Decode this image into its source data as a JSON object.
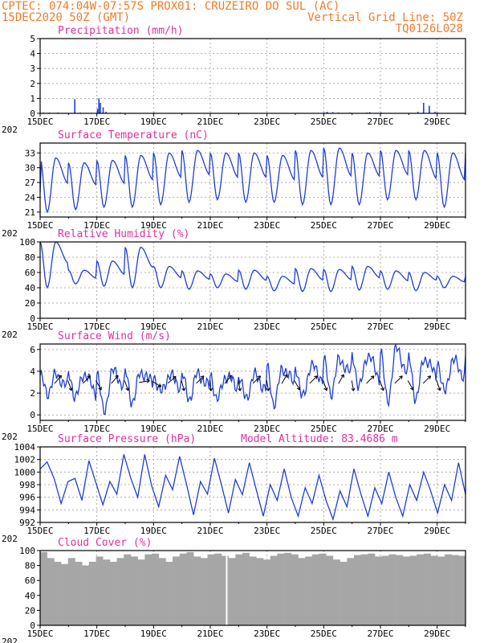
{
  "header": {
    "line1": "CPTEC:  074:04W-07:57S  PROX01: CRUZEIRO DO SUL (AC)",
    "date": "15DEC2020 50Z (GMT)",
    "grid_note": "Vertical Grid Line: 50Z",
    "code": "TQ0126L028"
  },
  "x_labels": [
    "15DEC",
    "17DEC",
    "19DEC",
    "21DEC",
    "23DEC",
    "25DEC",
    "27DEC",
    "29DEC"
  ],
  "year_fragment": "202",
  "colors": {
    "header": "#f07b28",
    "title": "#e0309a",
    "series": "#1f3ed8",
    "cloud": "#a6a6a6"
  },
  "chart_data": [
    {
      "id": "precip",
      "type": "bar",
      "title": "Precipitation (mm/h)",
      "ylim": [
        0,
        5
      ],
      "yticks": [
        0,
        1,
        2,
        3,
        4,
        5
      ],
      "days": [
        0.1,
        0.3,
        0.6,
        0.9,
        1.2,
        1.4,
        1.6,
        1.8,
        2.0,
        2.05,
        2.1,
        2.2,
        2.3,
        2.8,
        4.0,
        5.0,
        5.2,
        8.0,
        10.0,
        10.1,
        10.3,
        10.5,
        10.9,
        11.5,
        11.6,
        12.0,
        13.3,
        13.5,
        13.7,
        13.9,
        14.0
      ],
      "values": [
        0.05,
        0.05,
        0.05,
        0.03,
        0.95,
        0.05,
        0.03,
        0.03,
        0.3,
        1.0,
        0.7,
        0.4,
        0.1,
        0.05,
        0.05,
        0.03,
        0.03,
        0.03,
        0.05,
        0.1,
        0.08,
        0.05,
        0.05,
        0.05,
        0.08,
        0.05,
        0.1,
        0.7,
        0.5,
        0.1,
        0.05
      ]
    },
    {
      "id": "temp",
      "type": "line",
      "title": "Surface Temperature (nC)",
      "ylim": [
        20,
        35
      ],
      "yticks": [
        21,
        24,
        27,
        30,
        33
      ],
      "daily_min": [
        21.0,
        21.5,
        22.0,
        22.0,
        22.5,
        23.0,
        23.5,
        23.0,
        23.0,
        22.5,
        22.5,
        22.5,
        23.5,
        23.5,
        22.0
      ],
      "daily_max": [
        32.0,
        31.0,
        31.5,
        32.5,
        33.0,
        33.5,
        33.0,
        33.0,
        32.5,
        33.5,
        34.0,
        33.0,
        33.5,
        33.5,
        33.0
      ],
      "start_value": 25.0
    },
    {
      "id": "rh",
      "type": "line",
      "title": "Relative Humidity (%)",
      "ylim": [
        0,
        100
      ],
      "yticks": [
        0,
        20,
        40,
        60,
        80,
        100
      ],
      "daily_max": [
        100,
        63,
        75,
        93,
        68,
        62,
        58,
        63,
        55,
        65,
        64,
        68,
        62,
        60,
        55
      ],
      "daily_min": [
        40,
        45,
        42,
        40,
        40,
        38,
        40,
        38,
        36,
        35,
        35,
        37,
        38,
        36,
        40
      ],
      "start_value": 100
    },
    {
      "id": "wind",
      "type": "line",
      "title": "Surface Wind (m/s)",
      "ylim": [
        -0.5,
        6.5
      ],
      "yticks": [
        0,
        2,
        4,
        6
      ],
      "daily_max": [
        3.6,
        3.8,
        4.0,
        3.9,
        3.6,
        3.7,
        3.6,
        3.6,
        4.3,
        4.5,
        5.0,
        5.5,
        6.0,
        5.2,
        5.0
      ],
      "daily_min": [
        2.0,
        1.6,
        0.2,
        1.2,
        2.0,
        1.5,
        1.4,
        1.5,
        1.0,
        1.5,
        2.0,
        2.5,
        1.2,
        1.5,
        2.0
      ],
      "arrow_days": [
        0.55,
        1.0,
        1.55,
        2.0,
        2.55,
        3.0,
        3.55,
        4.0,
        4.55,
        5.0,
        5.55,
        6.0,
        6.55,
        7.0,
        7.55,
        8.0,
        8.55,
        9.0,
        9.55,
        10.0,
        10.55,
        11.0,
        11.55,
        12.0,
        12.55,
        13.0,
        13.55,
        14.0
      ],
      "arrow_dirs": [
        40,
        160,
        45,
        150,
        40,
        160,
        80,
        120,
        50,
        165,
        45,
        175,
        40,
        170,
        45,
        170,
        30,
        150,
        45,
        160,
        30,
        170,
        45,
        160,
        45,
        150,
        45,
        160
      ]
    },
    {
      "id": "pressure",
      "type": "line",
      "title": "Surface Pressure (hPa)",
      "extra_label": "Model Altitude: 83.4686 m",
      "ylim": [
        992,
        1004
      ],
      "yticks": [
        992,
        994,
        996,
        998,
        1000,
        1002,
        1004
      ],
      "values": [
        1000.5,
        1001.6,
        999.0,
        995.0,
        998.5,
        999.0,
        995.5,
        1001.8,
        998.3,
        994.8,
        998.5,
        996.5,
        1002.8,
        999.0,
        996.0,
        1002.8,
        997.8,
        994.5,
        999.5,
        997.2,
        1002.5,
        998.0,
        993.2,
        998.5,
        996.5,
        1002.2,
        998.0,
        993.5,
        998.8,
        996.4,
        1001.5,
        997.2,
        993.0,
        998.0,
        995.5,
        1000.5,
        996.0,
        993.0,
        997.5,
        995.0,
        999.5,
        995.5,
        992.5,
        997.0,
        994.5,
        1000.5,
        996.5,
        993.0,
        997.5,
        995.0,
        1000.0,
        996.0,
        993.0,
        998.0,
        995.5,
        1000.0,
        997.0,
        993.5,
        998.0,
        995.5,
        1001.5,
        996.5
      ]
    },
    {
      "id": "cloud",
      "type": "area",
      "title": "Cloud Cover (%)",
      "ylim": [
        0,
        100
      ],
      "yticks": [
        0,
        20,
        40,
        60,
        80,
        100
      ],
      "values": [
        98,
        90,
        85,
        82,
        90,
        85,
        80,
        85,
        92,
        88,
        85,
        90,
        95,
        92,
        88,
        95,
        96,
        90,
        85,
        92,
        96,
        98,
        92,
        90,
        95,
        96,
        93,
        90,
        95,
        97,
        92,
        90,
        88,
        93,
        96,
        97,
        95,
        90,
        92,
        95,
        96,
        93,
        88,
        85,
        90,
        94,
        95,
        96,
        92,
        93,
        95,
        94,
        92,
        93,
        95,
        96,
        93,
        92,
        95,
        94,
        93
      ],
      "gap_days": [
        6.55,
        6.6
      ]
    }
  ]
}
